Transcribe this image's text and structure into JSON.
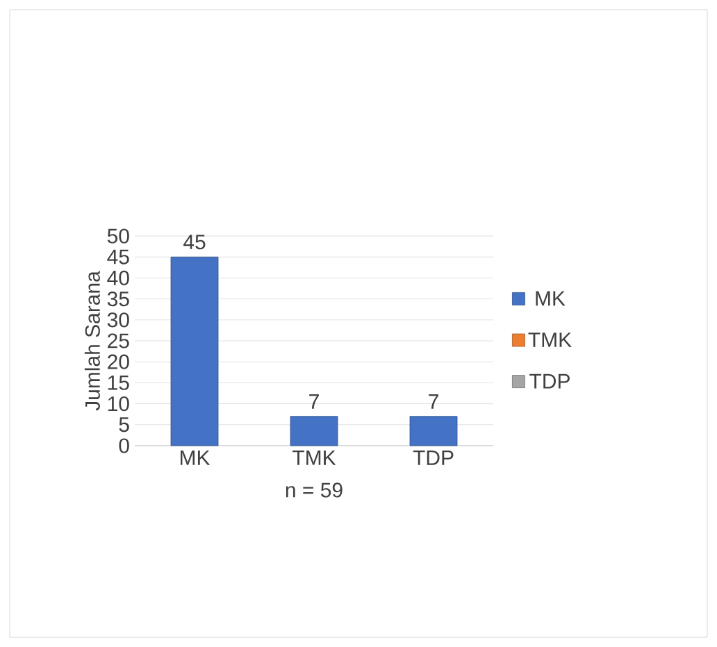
{
  "chart_data": {
    "type": "bar",
    "xlabel": "n = 59",
    "ylabel": "Jumlah Sarana",
    "categories": [
      "MK",
      "TMK",
      "TDP"
    ],
    "series": [
      {
        "name": "MK",
        "color": "#4472c4",
        "values": [
          45,
          7,
          7
        ]
      },
      {
        "name": "TMK",
        "color": "#ed7d31",
        "values": [
          null,
          null,
          null
        ]
      },
      {
        "name": "TDP",
        "color": "#a5a5a5",
        "values": [
          null,
          null,
          null
        ]
      }
    ],
    "ylim": [
      0,
      50
    ],
    "yticks": [
      0,
      5,
      10,
      15,
      20,
      25,
      30,
      35,
      40,
      45,
      50
    ],
    "grid": "y",
    "legend": "right",
    "data_labels": true
  }
}
